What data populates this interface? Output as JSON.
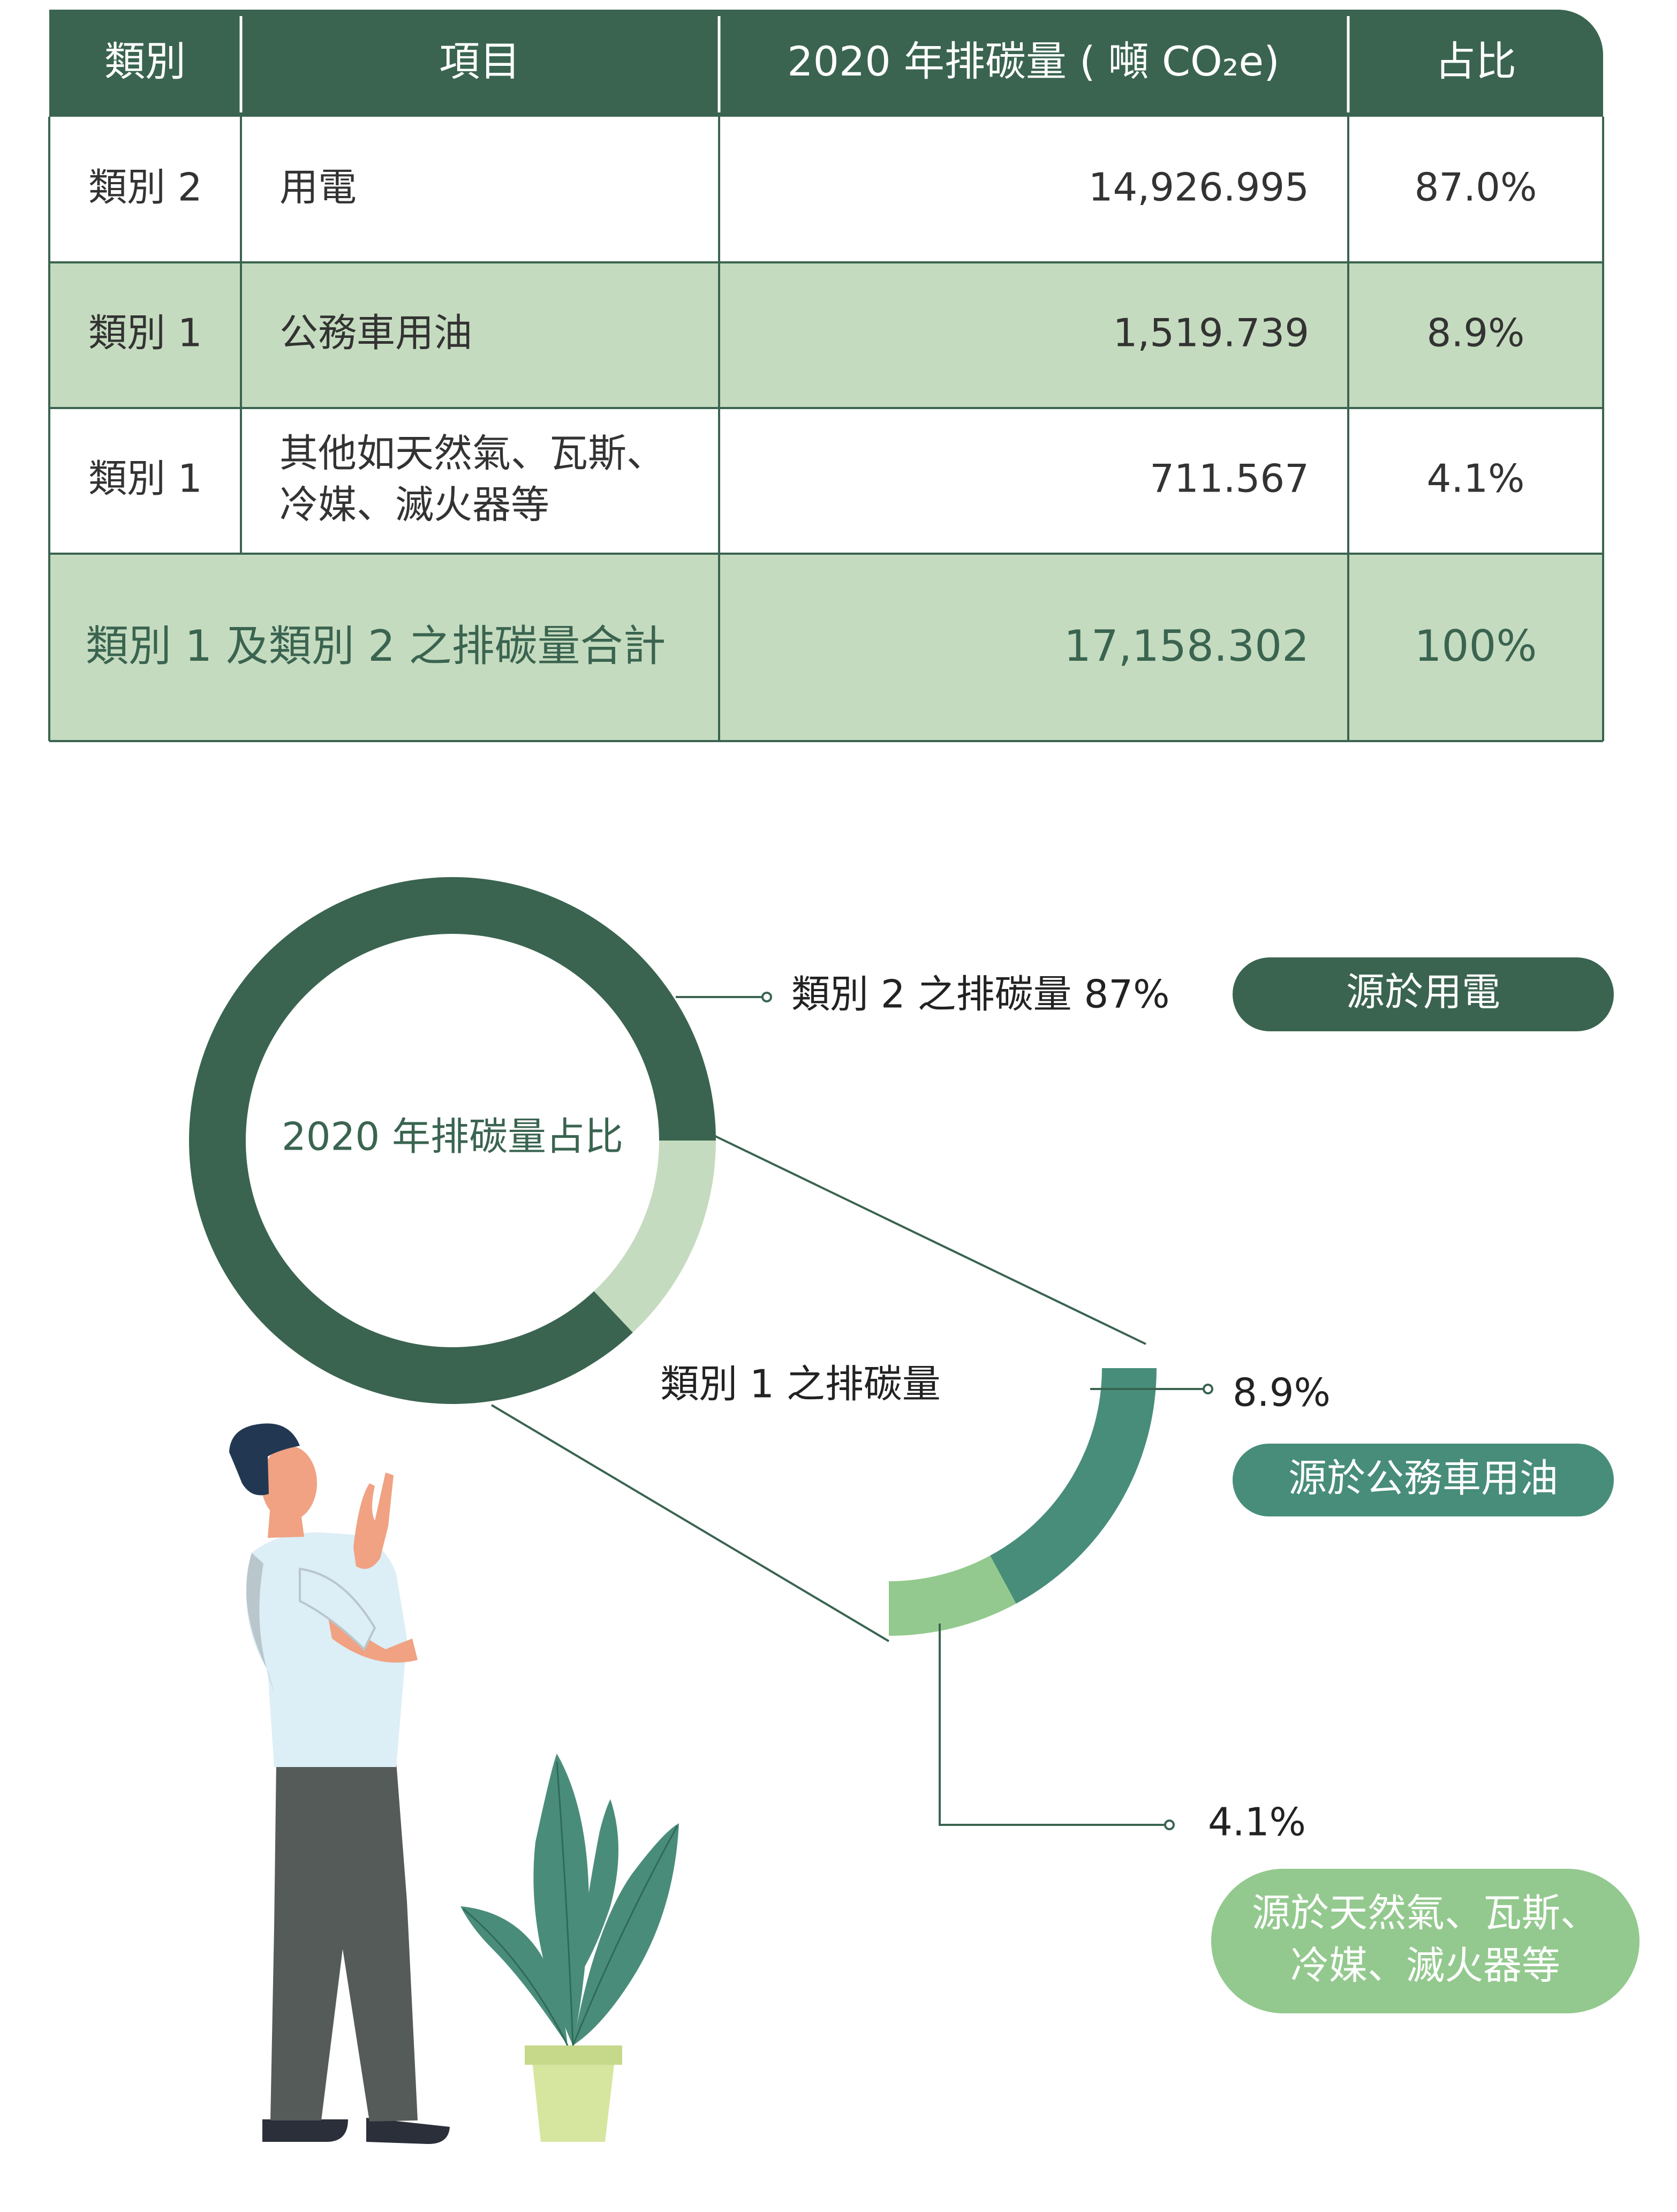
{
  "table": {
    "headers": [
      "類別",
      "項目",
      "2020 年排碳量 ( 噸 CO₂e)",
      "占比"
    ],
    "rows": [
      {
        "category": "類別 2",
        "item": [
          "用電"
        ],
        "value": "14,926.995",
        "share": "87.0%"
      },
      {
        "category": "類別 1",
        "item": [
          "公務車用油"
        ],
        "value": "1,519.739",
        "share": "8.9%"
      },
      {
        "category": "類別 1",
        "item": [
          "其他如天然氣、瓦斯、",
          "冷媒、滅火器等"
        ],
        "value": "711.567",
        "share": "4.1%"
      }
    ],
    "total": {
      "label": "類別 1 及類別 2 之排碳量合計",
      "value": "17,158.302",
      "share": "100%"
    }
  },
  "chart_data": [
    {
      "type": "pie",
      "title": "2020 年排碳量占比",
      "slices": [
        {
          "label": "類別 2 之排碳量 87%",
          "value": 87,
          "color": "#3a6450"
        },
        {
          "label": "類別 1 之排碳量",
          "value": 13,
          "color": "#c5dbbf"
        }
      ]
    },
    {
      "type": "pie",
      "title": "類別 1 之排碳量",
      "slices": [
        {
          "label": "8.9%",
          "value": 8.9,
          "color": "#478d7a"
        },
        {
          "label": "4.1%",
          "value": 4.1,
          "color": "#93c98e"
        }
      ]
    }
  ],
  "sources": {
    "electricity": "源於用電",
    "vehicle_fuel": "源於公務車用油",
    "other": [
      "源於天然氣、瓦斯、",
      "冷媒、滅火器等"
    ]
  },
  "colors": {
    "dark_green": "#3a6450",
    "light_green": "#c5dbbf",
    "teal": "#478d7a",
    "mint": "#93c98e"
  }
}
